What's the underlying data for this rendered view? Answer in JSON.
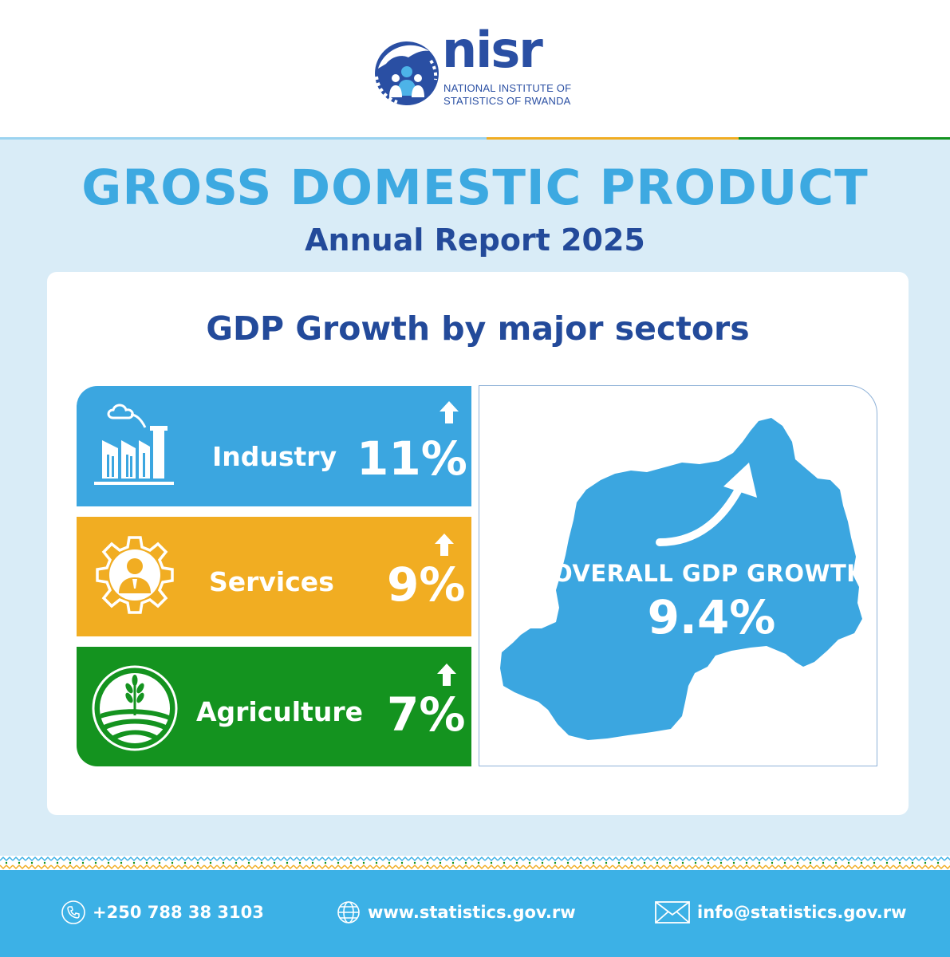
{
  "brand": {
    "logo_word": "nisr",
    "logo_line1": "NATIONAL INSTITUTE OF",
    "logo_line2": "STATISTICS OF RWANDA",
    "color_primary": "#2a4fa3",
    "color_accent": "#3da9e1"
  },
  "report": {
    "title": "GROSS DOMESTIC PRODUCT",
    "subtitle": "Annual Report 2025"
  },
  "card": {
    "title": "GDP Growth by major sectors"
  },
  "sectors": [
    {
      "label": "Industry",
      "value": "11%",
      "trend": "up",
      "icon": "factory-icon",
      "color": "#3ba6e0"
    },
    {
      "label": "Services",
      "value": "9%",
      "trend": "up",
      "icon": "gear-person-icon",
      "color": "#f1ad22"
    },
    {
      "label": "Agriculture",
      "value": "7%",
      "trend": "up",
      "icon": "field-sprout-icon",
      "color": "#14931f"
    }
  ],
  "overall": {
    "label": "OVERALL GDP GROWTH",
    "value": "9.4%",
    "map_color": "#3ba6e0"
  },
  "footer": {
    "phone": "+250 788 38 3103",
    "website": "www.statistics.gov.rw",
    "email": "info@statistics.gov.rw",
    "background": "#3cb1e6"
  }
}
